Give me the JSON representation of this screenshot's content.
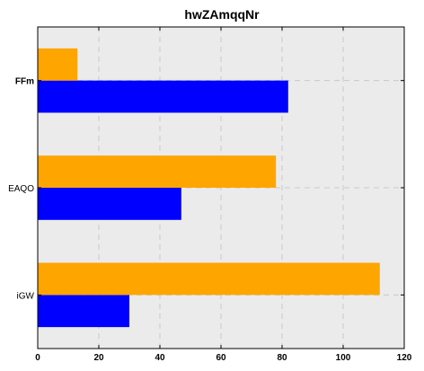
{
  "chart_data": {
    "type": "bar",
    "orientation": "horizontal",
    "title": "hwZAmqqNr",
    "xlabel": "",
    "ylabel": "",
    "categories": [
      "iGW",
      "EAQO",
      "FFm"
    ],
    "series": [
      {
        "values": [
          30,
          47,
          82
        ],
        "color": "#0000ff"
      },
      {
        "values": [
          112,
          78,
          13
        ],
        "color": "#ffa500"
      }
    ],
    "xlim": [
      0,
      120
    ],
    "xticks": [
      0,
      20,
      40,
      60,
      80,
      100,
      120
    ],
    "grid": true,
    "background": "#ebebeb",
    "bold_category": "FFm"
  }
}
